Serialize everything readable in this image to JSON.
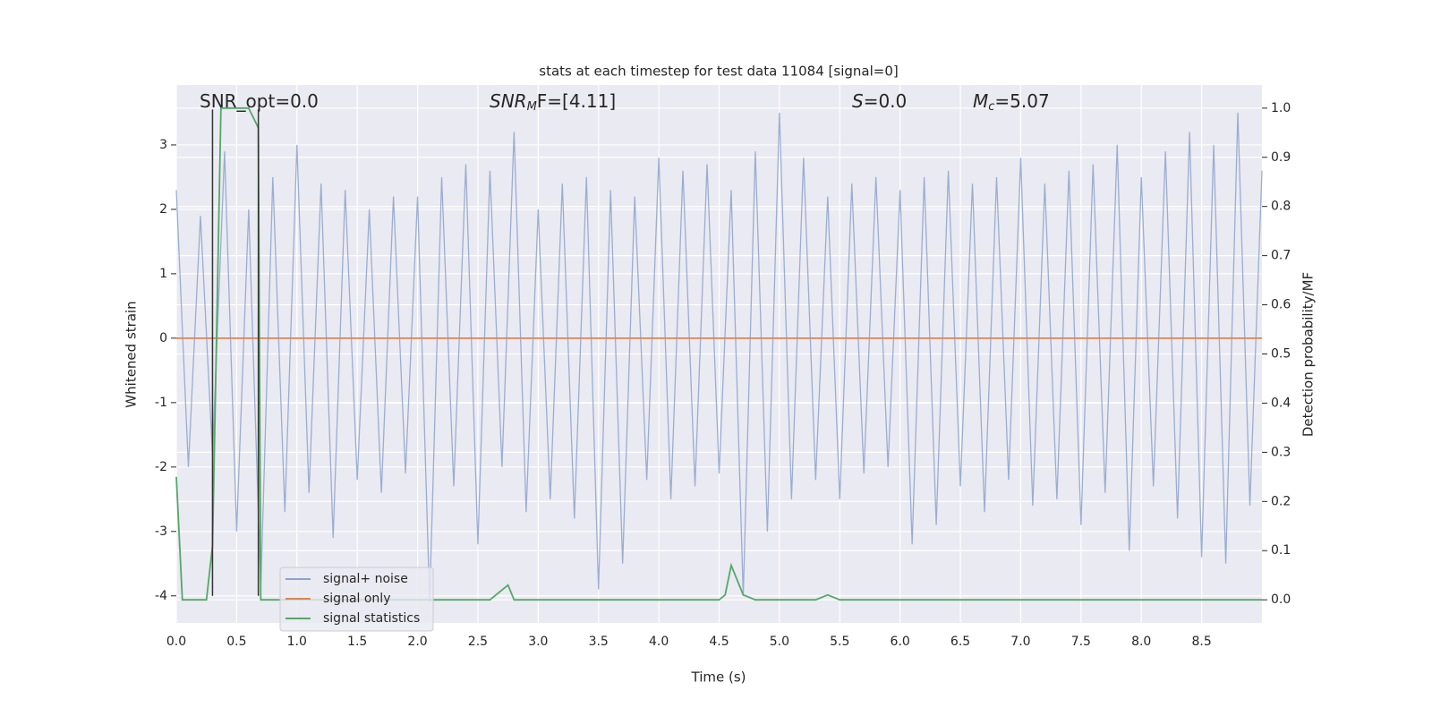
{
  "chart_data": {
    "type": "line",
    "title": "stats at each timestep for test data 11084 [signal=0]",
    "x_label": "Time (s)",
    "y_label": "Whitened strain",
    "y2_label": "Detection probability/MF",
    "xlim": [
      0,
      9.0
    ],
    "ylim": [
      -4.42,
      3.93
    ],
    "y2lim": [
      -0.047,
      1.047
    ],
    "grid": true,
    "legend_position": "lower left",
    "xticks": [
      {
        "value": 0,
        "label": "0.0"
      },
      {
        "value": 0.5,
        "label": "0.5"
      },
      {
        "value": 1,
        "label": "1.0"
      },
      {
        "value": 1.5,
        "label": "1.5"
      },
      {
        "value": 2,
        "label": "2.0"
      },
      {
        "value": 2.5,
        "label": "2.5"
      },
      {
        "value": 3,
        "label": "3.0"
      },
      {
        "value": 3.5,
        "label": "3.5"
      },
      {
        "value": 4,
        "label": "4.0"
      },
      {
        "value": 4.5,
        "label": "4.5"
      },
      {
        "value": 5,
        "label": "5.0"
      },
      {
        "value": 5.5,
        "label": "5.5"
      },
      {
        "value": 6,
        "label": "6.0"
      },
      {
        "value": 6.5,
        "label": "6.5"
      },
      {
        "value": 7,
        "label": "7.0"
      },
      {
        "value": 7.5,
        "label": "7.5"
      },
      {
        "value": 8,
        "label": "8.0"
      },
      {
        "value": 8.5,
        "label": "8.5"
      }
    ],
    "yticks": [
      -4,
      -3,
      -2,
      -1,
      0,
      1,
      2,
      3
    ],
    "y2ticks": [
      {
        "value": 0,
        "label": "0.0"
      },
      {
        "value": 0.1,
        "label": "0.1"
      },
      {
        "value": 0.2,
        "label": "0.2"
      },
      {
        "value": 0.3,
        "label": "0.3"
      },
      {
        "value": 0.4,
        "label": "0.4"
      },
      {
        "value": 0.5,
        "label": "0.5"
      },
      {
        "value": 0.6,
        "label": "0.6"
      },
      {
        "value": 0.7,
        "label": "0.7"
      },
      {
        "value": 0.8,
        "label": "0.8"
      },
      {
        "value": 0.9,
        "label": "0.9"
      },
      {
        "value": 1,
        "label": "1.0"
      }
    ],
    "series": [
      {
        "name": "signal+ noise",
        "color": "#8da2cc",
        "x": [
          0,
          0.1,
          0.2,
          0.3,
          0.4,
          0.5,
          0.6,
          0.7,
          0.8,
          0.9,
          1,
          1.1,
          1.2,
          1.3,
          1.4,
          1.5,
          1.6,
          1.7,
          1.8,
          1.9,
          2,
          2.1,
          2.2,
          2.3,
          2.4,
          2.5,
          2.6,
          2.7,
          2.8,
          2.9,
          3,
          3.1,
          3.2,
          3.3,
          3.4,
          3.5,
          3.6,
          3.7,
          3.8,
          3.9,
          4,
          4.1,
          4.2,
          4.3,
          4.4,
          4.5,
          4.6,
          4.7,
          4.8,
          4.9,
          5,
          5.1,
          5.2,
          5.3,
          5.4,
          5.5,
          5.6,
          5.7,
          5.8,
          5.9,
          6,
          6.1,
          6.2,
          6.3,
          6.4,
          6.5,
          6.6,
          6.7,
          6.8,
          6.9,
          7,
          7.1,
          7.2,
          7.3,
          7.4,
          7.5,
          7.6,
          7.7,
          7.8,
          7.9,
          8,
          8.1,
          8.2,
          8.3,
          8.4,
          8.5,
          8.6,
          8.7,
          8.8,
          8.9,
          9
        ],
        "values": [
          2.3,
          -2.0,
          1.9,
          -1.8,
          2.9,
          -3.0,
          2.0,
          -3.9,
          2.5,
          -2.7,
          3.0,
          -2.4,
          2.4,
          -3.1,
          2.3,
          -2.2,
          2.0,
          -2.4,
          2.2,
          -2.1,
          2.2,
          -4.1,
          2.5,
          -2.3,
          2.7,
          -3.2,
          2.6,
          -2.0,
          3.2,
          -2.7,
          2.0,
          -2.5,
          2.4,
          -2.8,
          2.5,
          -3.9,
          2.3,
          -3.5,
          2.2,
          -2.2,
          2.8,
          -2.5,
          2.6,
          -2.3,
          2.7,
          -2.1,
          2.3,
          -4.0,
          2.9,
          -3.0,
          3.5,
          -2.5,
          2.8,
          -2.2,
          2.2,
          -2.5,
          2.4,
          -2.1,
          2.5,
          -2.0,
          2.3,
          -3.2,
          2.5,
          -2.9,
          2.6,
          -2.3,
          2.4,
          -2.7,
          2.5,
          -2.2,
          2.8,
          -2.6,
          2.4,
          -2.5,
          2.6,
          -2.9,
          2.7,
          -2.4,
          3.0,
          -3.3,
          2.5,
          -2.3,
          2.9,
          -2.8,
          3.2,
          -3.4,
          3.0,
          -3.5,
          3.5,
          -2.6,
          2.6
        ]
      },
      {
        "name": "signal only",
        "color": "#dd8452",
        "x": [
          0,
          9
        ],
        "values": [
          0,
          0
        ]
      },
      {
        "name": "signal statistics",
        "color": "#55a868",
        "axis": "y2",
        "x": [
          0,
          0.05,
          0.25,
          0.3,
          0.37,
          0.4,
          0.6,
          0.68,
          0.7,
          0.75,
          2.6,
          2.7,
          2.75,
          2.8,
          4.5,
          4.55,
          4.6,
          4.7,
          4.8,
          5.3,
          5.4,
          5.5,
          9
        ],
        "values": [
          0.25,
          0.0,
          0.0,
          0.11,
          1.0,
          1.0,
          1.0,
          0.96,
          0.0,
          0.0,
          0.0,
          0.02,
          0.03,
          0.0,
          0.0,
          0.01,
          0.07,
          0.01,
          0.0,
          0.0,
          0.01,
          0.0,
          0.0
        ]
      }
    ],
    "vlines": {
      "color": "#333333",
      "x": [
        0.3,
        0.68
      ],
      "ymin": -4,
      "ymax": 3.55
    },
    "annotations": [
      {
        "main": "SNR_opt=0.0"
      },
      {
        "main": "SNR",
        "sub": "M",
        "tail": "F=[4.11]"
      },
      {
        "main": "S",
        "tail": "=0.0"
      },
      {
        "main": "M",
        "sub": "c",
        "tail": "=5.07"
      }
    ]
  }
}
